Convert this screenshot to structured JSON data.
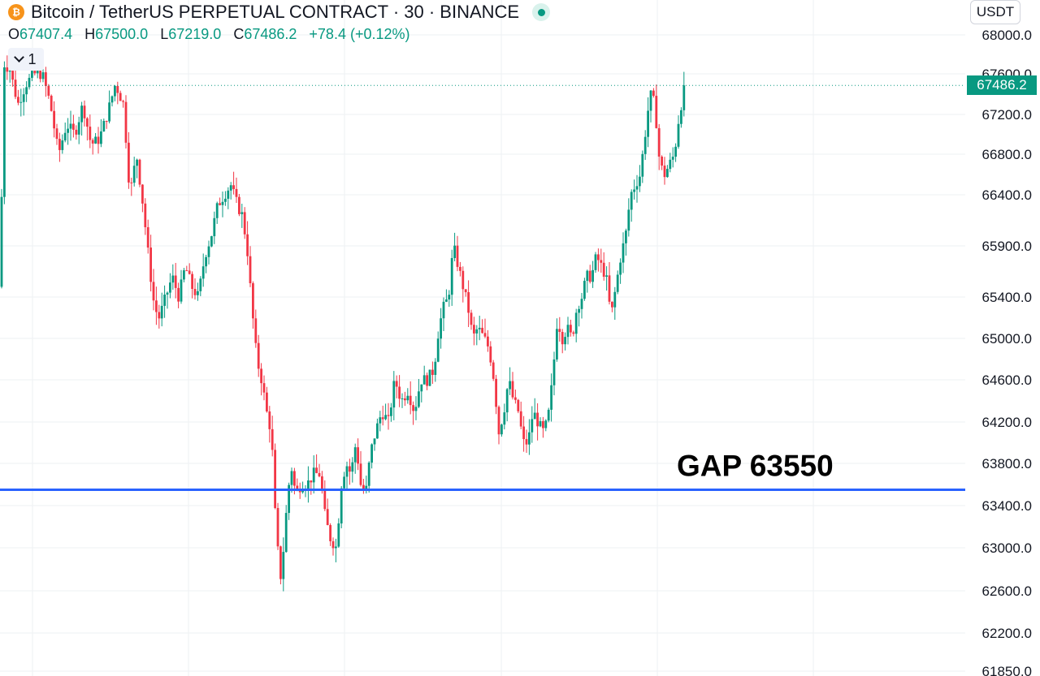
{
  "header": {
    "symbol_icon": "bitcoin-icon",
    "title": "Bitcoin / TetherUS PERPETUAL CONTRACT · 30 · BINANCE",
    "currency": "USDT",
    "collapse_count": "1"
  },
  "ohlc": {
    "o_label": "O",
    "o_value": "67407.4",
    "h_label": "H",
    "h_value": "67500.0",
    "l_label": "L",
    "l_value": "67219.0",
    "c_label": "C",
    "c_value": "67486.2",
    "change": "+78.4 (+0.12%)"
  },
  "colors": {
    "up": "#089981",
    "down": "#f23645",
    "gap_line": "#2962ff",
    "grid": "#eef0f3"
  },
  "chart_data": {
    "type": "candlestick",
    "title": "Bitcoin / TetherUS PERPETUAL CONTRACT · 30 · BINANCE",
    "y_axis_labels": [
      "68000.0",
      "67600.0",
      "67200.0",
      "66800.0",
      "66400.0",
      "65900.0",
      "65400.0",
      "65000.0",
      "64600.0",
      "64200.0",
      "63800.0",
      "63400.0",
      "63000.0",
      "62600.0",
      "62200.0",
      "61850.0"
    ],
    "ylim": [
      61850,
      68000
    ],
    "last_price": 67486.2,
    "last_price_label": "67486.2",
    "horizontal_line": {
      "value": 63550,
      "label": "GAP 63550"
    },
    "grid": true,
    "close_path": [
      [
        0,
        65500
      ],
      [
        5,
        67700
      ],
      [
        12,
        67650
      ],
      [
        22,
        67300
      ],
      [
        32,
        67500
      ],
      [
        42,
        67600
      ],
      [
        52,
        67600
      ],
      [
        62,
        67300
      ],
      [
        72,
        66800
      ],
      [
        82,
        67100
      ],
      [
        92,
        67000
      ],
      [
        102,
        67300
      ],
      [
        112,
        66900
      ],
      [
        122,
        66950
      ],
      [
        132,
        67200
      ],
      [
        142,
        67500
      ],
      [
        152,
        67300
      ],
      [
        160,
        66400
      ],
      [
        168,
        66800
      ],
      [
        176,
        66300
      ],
      [
        184,
        65700
      ],
      [
        190,
        65300
      ],
      [
        196,
        65200
      ],
      [
        204,
        65400
      ],
      [
        212,
        65600
      ],
      [
        220,
        65400
      ],
      [
        228,
        65700
      ],
      [
        236,
        65500
      ],
      [
        244,
        65400
      ],
      [
        252,
        65800
      ],
      [
        260,
        66000
      ],
      [
        268,
        66300
      ],
      [
        276,
        66400
      ],
      [
        284,
        66500
      ],
      [
        292,
        66300
      ],
      [
        298,
        66200
      ],
      [
        304,
        65900
      ],
      [
        310,
        65300
      ],
      [
        316,
        64800
      ],
      [
        322,
        64600
      ],
      [
        328,
        64300
      ],
      [
        334,
        64100
      ],
      [
        340,
        63100
      ],
      [
        346,
        62700
      ],
      [
        352,
        63300
      ],
      [
        358,
        63800
      ],
      [
        364,
        63500
      ],
      [
        370,
        63600
      ],
      [
        378,
        63600
      ],
      [
        386,
        63700
      ],
      [
        394,
        63700
      ],
      [
        400,
        63300
      ],
      [
        406,
        63100
      ],
      [
        414,
        63000
      ],
      [
        420,
        63600
      ],
      [
        426,
        63800
      ],
      [
        432,
        63700
      ],
      [
        438,
        64000
      ],
      [
        444,
        63600
      ],
      [
        450,
        63500
      ],
      [
        456,
        63900
      ],
      [
        462,
        64100
      ],
      [
        470,
        64300
      ],
      [
        478,
        64200
      ],
      [
        486,
        64600
      ],
      [
        494,
        64400
      ],
      [
        502,
        64500
      ],
      [
        510,
        64300
      ],
      [
        518,
        64600
      ],
      [
        526,
        64600
      ],
      [
        534,
        64700
      ],
      [
        540,
        65100
      ],
      [
        546,
        65300
      ],
      [
        552,
        65400
      ],
      [
        558,
        65900
      ],
      [
        564,
        65700
      ],
      [
        570,
        65500
      ],
      [
        576,
        65300
      ],
      [
        582,
        65000
      ],
      [
        588,
        65100
      ],
      [
        596,
        65000
      ],
      [
        602,
        64900
      ],
      [
        608,
        64600
      ],
      [
        614,
        64100
      ],
      [
        620,
        64300
      ],
      [
        626,
        64600
      ],
      [
        632,
        64400
      ],
      [
        638,
        64300
      ],
      [
        644,
        64000
      ],
      [
        650,
        64000
      ],
      [
        656,
        64300
      ],
      [
        662,
        64200
      ],
      [
        668,
        64100
      ],
      [
        674,
        64200
      ],
      [
        680,
        64600
      ],
      [
        686,
        65200
      ],
      [
        692,
        65000
      ],
      [
        698,
        65100
      ],
      [
        704,
        65000
      ],
      [
        710,
        65300
      ],
      [
        716,
        65400
      ],
      [
        722,
        65600
      ],
      [
        728,
        65600
      ],
      [
        734,
        65800
      ],
      [
        740,
        65700
      ],
      [
        746,
        65600
      ],
      [
        752,
        65200
      ],
      [
        758,
        65500
      ],
      [
        764,
        65800
      ],
      [
        770,
        66000
      ],
      [
        776,
        66400
      ],
      [
        782,
        66500
      ],
      [
        788,
        66600
      ],
      [
        794,
        67000
      ],
      [
        800,
        67400
      ],
      [
        806,
        67300
      ],
      [
        812,
        66700
      ],
      [
        818,
        66600
      ],
      [
        824,
        66700
      ],
      [
        830,
        66800
      ],
      [
        836,
        67200
      ],
      [
        843,
        67486
      ]
    ]
  }
}
